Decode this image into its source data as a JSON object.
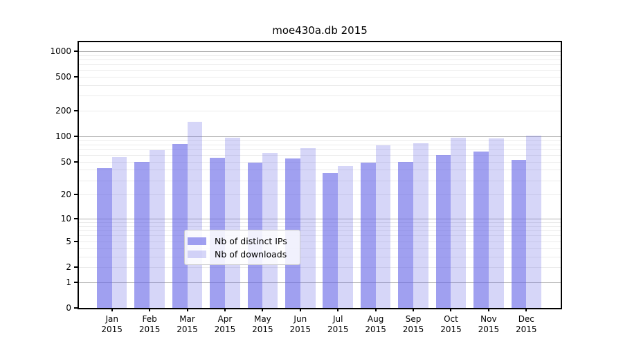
{
  "figure": {
    "title": "moe430a.db 2015"
  },
  "chart_data": {
    "type": "bar",
    "title": "moe430a.db 2015",
    "x_categories": [
      "Jan",
      "Feb",
      "Mar",
      "Apr",
      "May",
      "Jun",
      "Jul",
      "Aug",
      "Sep",
      "Oct",
      "Nov",
      "Dec"
    ],
    "x_year": "2015",
    "series": [
      {
        "name": "Nb of distinct IPs",
        "color": "#6666e6",
        "alpha": 0.62,
        "values": [
          42,
          50,
          82,
          56,
          49,
          55,
          37,
          49,
          50,
          60,
          66,
          53
        ]
      },
      {
        "name": "Nb of downloads",
        "color": "#6666e6",
        "alpha": 0.27,
        "values": [
          57,
          69,
          148,
          96,
          64,
          73,
          44,
          78,
          83,
          96,
          94,
          102
        ]
      }
    ],
    "y_scale": "log10(1+y)",
    "y_ticks": [
      1000,
      500,
      200,
      100,
      50,
      20,
      10,
      5,
      2,
      1,
      0
    ],
    "y_axis_top_value": 1270,
    "grid": true,
    "legend_position": "inside bottom-center"
  },
  "colors": {
    "grid_major": "#b0b0b0",
    "grid_minor": "#ebebeb",
    "spine": "#000000",
    "legend_border": "#cccccc",
    "legend_bg": "rgba(255,255,255,0.85)"
  }
}
